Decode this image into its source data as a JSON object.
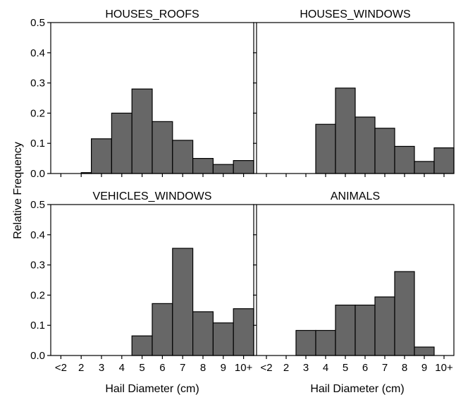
{
  "chart_data": {
    "type": "bar",
    "layout": "2x2 grid of histograms, shared axes",
    "xlabel": "Hail Diameter (cm)",
    "ylabel": "Relative Frequency",
    "ylim": [
      0,
      0.5
    ],
    "yticks": [
      "0.0",
      "0.1",
      "0.2",
      "0.3",
      "0.4",
      "0.5"
    ],
    "xticks": [
      "<2",
      "2",
      "3",
      "4",
      "5",
      "6",
      "7",
      "8",
      "9",
      "10+"
    ],
    "bar_color": "#676767",
    "panels": [
      {
        "title": "HOUSES_ROOFS",
        "bins": [
          {
            "from": 2,
            "to": 2.5,
            "value": 0.003
          },
          {
            "from": 2.5,
            "to": 3.5,
            "value": 0.115
          },
          {
            "from": 3.5,
            "to": 4.5,
            "value": 0.2
          },
          {
            "from": 4.5,
            "to": 5.5,
            "value": 0.28
          },
          {
            "from": 5.5,
            "to": 6.5,
            "value": 0.172
          },
          {
            "from": 6.5,
            "to": 7.5,
            "value": 0.11
          },
          {
            "from": 7.5,
            "to": 8.5,
            "value": 0.05
          },
          {
            "from": 8.5,
            "to": 9.5,
            "value": 0.03
          },
          {
            "from": 9.5,
            "to": 10.5,
            "value": 0.043
          }
        ]
      },
      {
        "title": "HOUSES_WINDOWS",
        "bins": [
          {
            "from": 3.5,
            "to": 4.5,
            "value": 0.163
          },
          {
            "from": 4.5,
            "to": 5.5,
            "value": 0.283
          },
          {
            "from": 5.5,
            "to": 6.5,
            "value": 0.187
          },
          {
            "from": 6.5,
            "to": 7.5,
            "value": 0.15
          },
          {
            "from": 7.5,
            "to": 8.5,
            "value": 0.09
          },
          {
            "from": 8.5,
            "to": 9.5,
            "value": 0.04
          },
          {
            "from": 9.5,
            "to": 10.5,
            "value": 0.085
          }
        ]
      },
      {
        "title": "VEHICLES_WINDOWS",
        "bins": [
          {
            "from": 4.5,
            "to": 5.5,
            "value": 0.065
          },
          {
            "from": 5.5,
            "to": 6.5,
            "value": 0.172
          },
          {
            "from": 6.5,
            "to": 7.5,
            "value": 0.355
          },
          {
            "from": 7.5,
            "to": 8.5,
            "value": 0.145
          },
          {
            "from": 8.5,
            "to": 9.5,
            "value": 0.108
          },
          {
            "from": 9.5,
            "to": 10.5,
            "value": 0.155
          }
        ]
      },
      {
        "title": "ANIMALS",
        "bins": [
          {
            "from": 2.5,
            "to": 3.5,
            "value": 0.083
          },
          {
            "from": 3.5,
            "to": 4.5,
            "value": 0.083
          },
          {
            "from": 4.5,
            "to": 5.5,
            "value": 0.167
          },
          {
            "from": 5.5,
            "to": 6.5,
            "value": 0.167
          },
          {
            "from": 6.5,
            "to": 7.5,
            "value": 0.194
          },
          {
            "from": 7.5,
            "to": 8.5,
            "value": 0.278
          },
          {
            "from": 8.5,
            "to": 9.5,
            "value": 0.028
          }
        ]
      }
    ]
  }
}
